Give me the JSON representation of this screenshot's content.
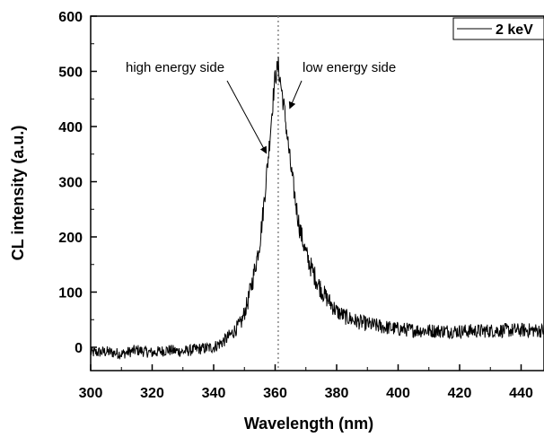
{
  "chart_data": {
    "type": "line",
    "title": "",
    "xlabel": "Wavelength (nm)",
    "ylabel": "CL intensity (a.u.)",
    "xlim": [
      300,
      450
    ],
    "ylim": [
      -50,
      600
    ],
    "x_ticks": [
      300,
      320,
      340,
      360,
      380,
      400,
      420,
      440
    ],
    "y_ticks": [
      0,
      100,
      200,
      300,
      400,
      500,
      600
    ],
    "grid": false,
    "legend_position": "top-right",
    "reference_line": {
      "x": 361,
      "style": "dotted"
    },
    "annotations": [
      {
        "text": "high energy side",
        "x": 352,
        "y": 500,
        "arrow_to": [
          358,
          360
        ]
      },
      {
        "text": "low energy side",
        "x": 368,
        "y": 500,
        "arrow_to": [
          363,
          420
        ]
      }
    ],
    "series": [
      {
        "name": "2 keV",
        "color": "#000000",
        "x": [
          300,
          305,
          310,
          315,
          320,
          325,
          330,
          335,
          340,
          343,
          346,
          349,
          351,
          353,
          355,
          356,
          357,
          358,
          359,
          360,
          361,
          362,
          363,
          364,
          365,
          366,
          367,
          368,
          370,
          372,
          374,
          376,
          378,
          380,
          383,
          386,
          390,
          395,
          400,
          405,
          410,
          420,
          430,
          440,
          450
        ],
        "y": [
          -10,
          -8,
          -12,
          -5,
          -10,
          -5,
          -8,
          -3,
          0,
          10,
          25,
          45,
          80,
          130,
          190,
          240,
          300,
          360,
          430,
          490,
          510,
          470,
          430,
          380,
          330,
          290,
          250,
          215,
          170,
          140,
          115,
          95,
          80,
          65,
          55,
          48,
          42,
          37,
          33,
          31,
          30,
          29,
          30,
          31,
          30
        ]
      }
    ]
  }
}
